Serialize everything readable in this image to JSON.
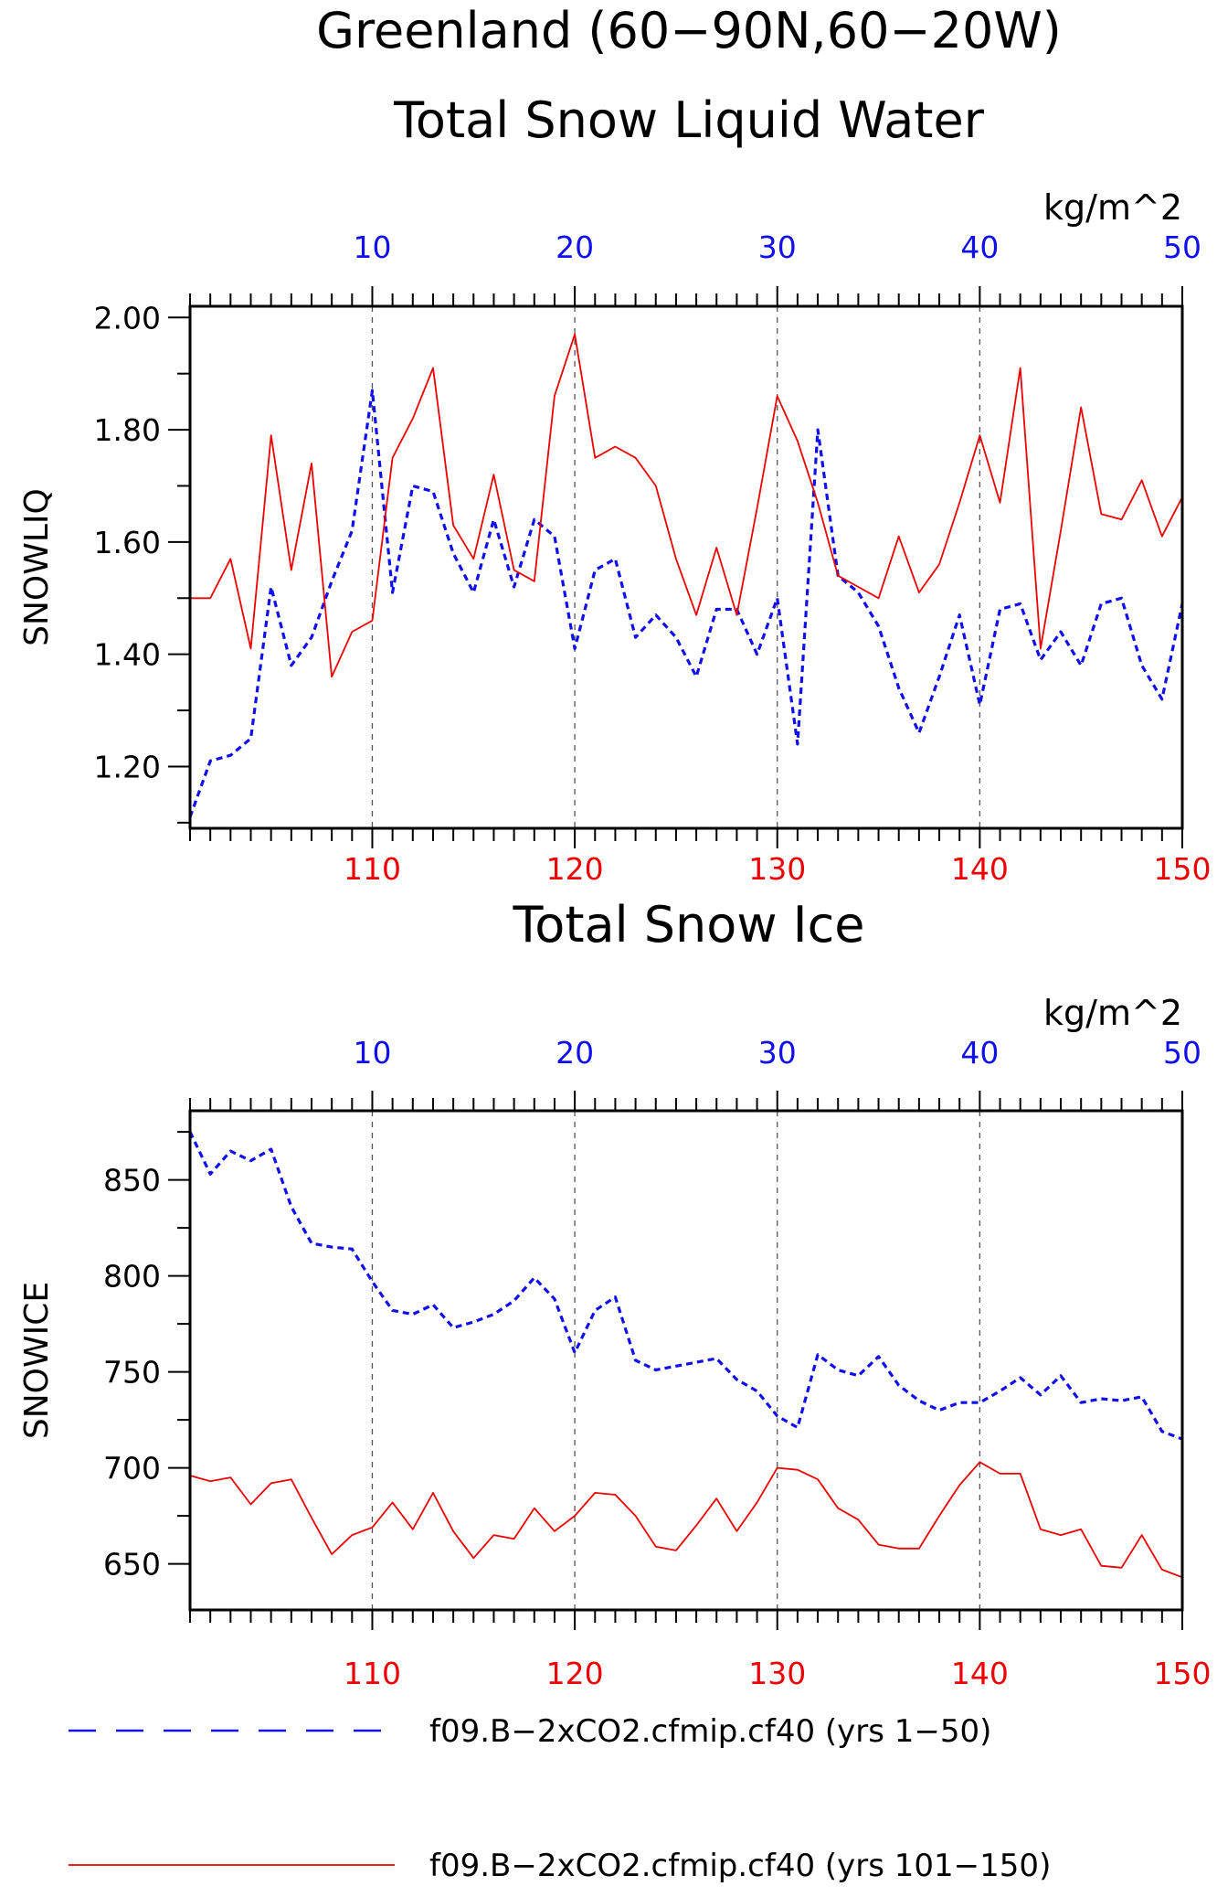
{
  "figure": {
    "title_line1": "Greenland (60−90N,60−20W)",
    "colors": {
      "blue": "#1010ee",
      "red": "#ee0000",
      "black": "#000000",
      "grid": "#555555"
    }
  },
  "legend": [
    {
      "label": "f09.B−2xCO2.cfmip.cf40 (yrs 1−50)",
      "color": "#1010ee",
      "style": "dashed"
    },
    {
      "label": "f09.B−2xCO2.cfmip.cf40 (yrs 101−150)",
      "color": "#ee0000",
      "style": "solid"
    }
  ],
  "chart_data": [
    {
      "type": "line",
      "title": "Total Snow Liquid Water",
      "units": "kg/m^2",
      "ylabel": "SNOWLIQ",
      "ylim": [
        1.09,
        2.02
      ],
      "yticks": [
        1.2,
        1.4,
        1.6,
        1.8,
        2.0
      ],
      "ytick_labels": [
        "1.20",
        "1.40",
        "1.60",
        "1.80",
        "2.00"
      ],
      "x_top": {
        "range": [
          1,
          50
        ],
        "ticks": [
          10,
          20,
          30,
          40,
          50
        ],
        "labels": [
          "10",
          "20",
          "30",
          "40",
          "50"
        ]
      },
      "x_bottom": {
        "range": [
          101,
          150
        ],
        "ticks": [
          110,
          120,
          130,
          140,
          150
        ],
        "labels": [
          "110",
          "120",
          "130",
          "140",
          "150"
        ]
      },
      "grid": "vertical dashed at major ticks",
      "series": [
        {
          "name": "f09.B−2xCO2.cfmip.cf40 (yrs 1−50)",
          "axis": "top",
          "style": "dashed",
          "values": [
            1.11,
            1.21,
            1.22,
            1.25,
            1.52,
            1.38,
            1.43,
            1.53,
            1.62,
            1.87,
            1.51,
            1.7,
            1.69,
            1.58,
            1.51,
            1.64,
            1.52,
            1.64,
            1.61,
            1.41,
            1.55,
            1.57,
            1.43,
            1.47,
            1.43,
            1.36,
            1.48,
            1.48,
            1.4,
            1.5,
            1.24,
            1.8,
            1.54,
            1.51,
            1.45,
            1.34,
            1.26,
            1.36,
            1.47,
            1.31,
            1.48,
            1.49,
            1.39,
            1.44,
            1.38,
            1.49,
            1.5,
            1.38,
            1.32,
            1.49
          ]
        },
        {
          "name": "f09.B−2xCO2.cfmip.cf40 (yrs 101−150)",
          "axis": "bottom",
          "style": "solid",
          "values": [
            1.5,
            1.5,
            1.57,
            1.41,
            1.79,
            1.55,
            1.74,
            1.36,
            1.44,
            1.46,
            1.75,
            1.82,
            1.91,
            1.63,
            1.57,
            1.72,
            1.55,
            1.53,
            1.86,
            1.97,
            1.75,
            1.77,
            1.75,
            1.7,
            1.57,
            1.47,
            1.59,
            1.47,
            1.66,
            1.86,
            1.78,
            1.67,
            1.54,
            1.52,
            1.5,
            1.61,
            1.51,
            1.56,
            1.67,
            1.79,
            1.67,
            1.91,
            1.41,
            1.62,
            1.84,
            1.65,
            1.64,
            1.71,
            1.61,
            1.68
          ]
        }
      ]
    },
    {
      "type": "line",
      "title": "Total Snow Ice",
      "units": "kg/m^2",
      "ylabel": "SNOWICE",
      "ylim": [
        626,
        886
      ],
      "yticks": [
        650,
        700,
        750,
        800,
        850
      ],
      "ytick_labels": [
        "650",
        "700",
        "750",
        "800",
        "850"
      ],
      "x_top": {
        "range": [
          1,
          50
        ],
        "ticks": [
          10,
          20,
          30,
          40,
          50
        ],
        "labels": [
          "10",
          "20",
          "30",
          "40",
          "50"
        ]
      },
      "x_bottom": {
        "range": [
          101,
          150
        ],
        "ticks": [
          110,
          120,
          130,
          140,
          150
        ],
        "labels": [
          "110",
          "120",
          "130",
          "140",
          "150"
        ]
      },
      "grid": "vertical dashed at major ticks",
      "series": [
        {
          "name": "f09.B−2xCO2.cfmip.cf40 (yrs 1−50)",
          "axis": "top",
          "style": "dashed",
          "values": [
            875,
            853,
            865,
            860,
            866,
            836,
            817,
            815,
            814,
            797,
            782,
            780,
            785,
            773,
            776,
            780,
            787,
            799,
            788,
            760,
            782,
            789,
            756,
            751,
            753,
            755,
            757,
            746,
            740,
            727,
            721,
            759,
            751,
            748,
            758,
            743,
            735,
            730,
            734,
            734,
            740,
            747,
            738,
            748,
            734,
            736,
            735,
            737,
            719,
            715
          ]
        },
        {
          "name": "f09.B−2xCO2.cfmip.cf40 (yrs 101−150)",
          "axis": "bottom",
          "style": "solid",
          "values": [
            696,
            693,
            695,
            681,
            692,
            694,
            674,
            655,
            665,
            669,
            682,
            668,
            687,
            667,
            653,
            665,
            663,
            679,
            667,
            675,
            687,
            686,
            675,
            659,
            657,
            670,
            684,
            667,
            682,
            700,
            699,
            694,
            679,
            673,
            660,
            658,
            658,
            675,
            691,
            703,
            697,
            697,
            668,
            665,
            668,
            649,
            648,
            665,
            647,
            643
          ]
        }
      ]
    }
  ]
}
